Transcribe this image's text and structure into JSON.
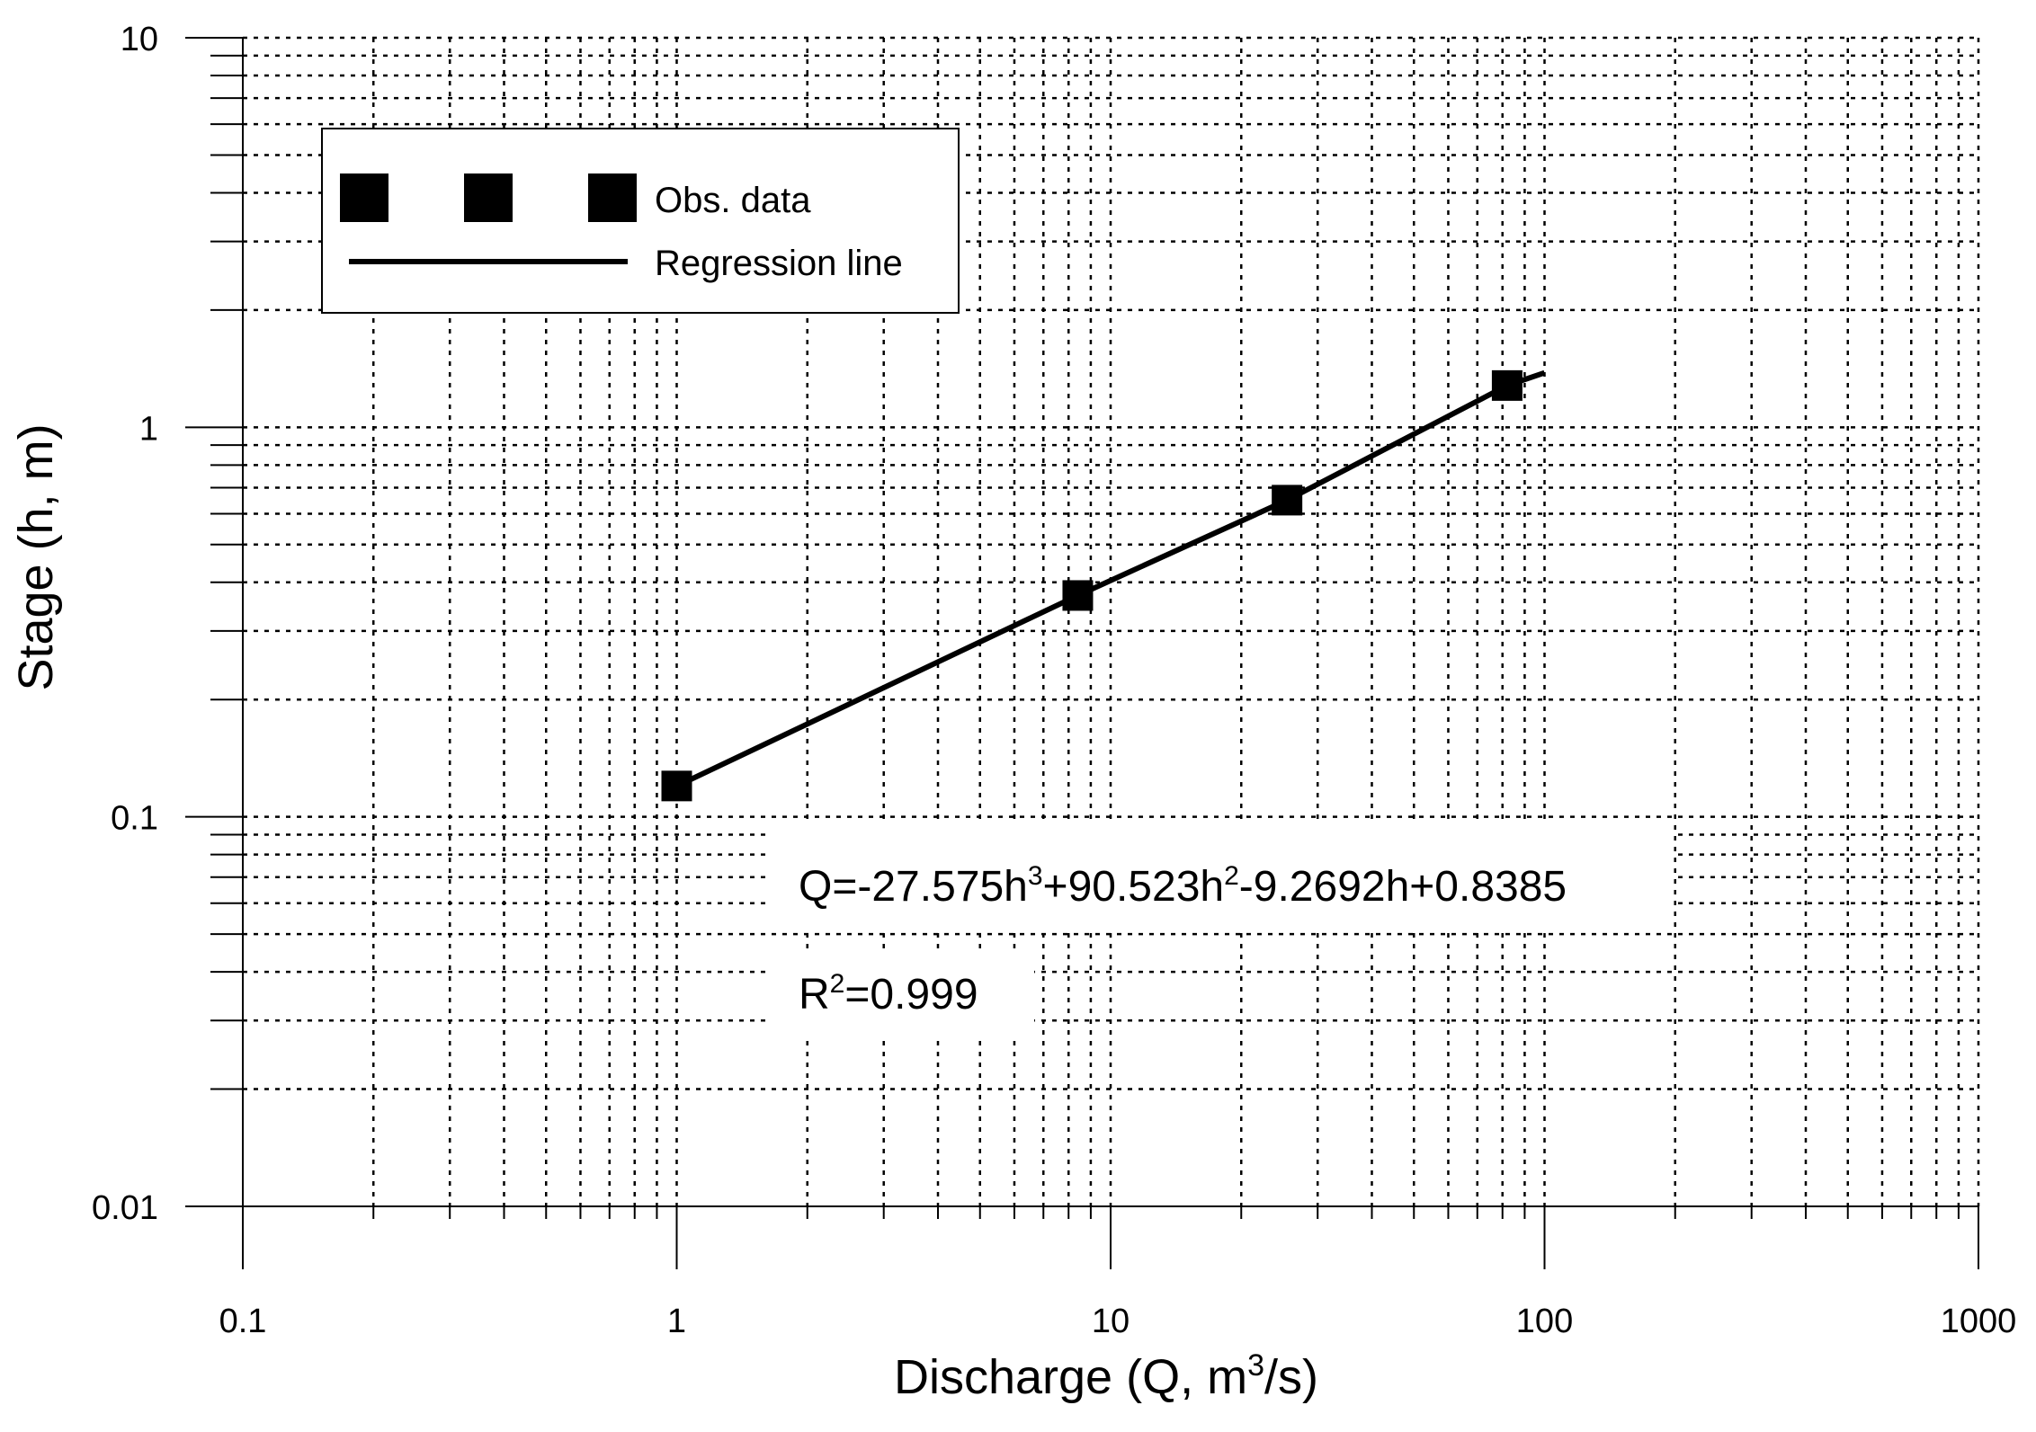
{
  "chart_data": {
    "type": "scatter",
    "xlabel": "Discharge (Q, m3/s)",
    "ylabel": "Stage (h, m)",
    "xscale": "log",
    "yscale": "log",
    "xlim": [
      0.1,
      1000
    ],
    "ylim": [
      0.01,
      10
    ],
    "x_ticks": [
      "0.1",
      "1",
      "10",
      "100",
      "1000"
    ],
    "y_ticks": [
      "0.01",
      "0.1",
      "1",
      "10"
    ],
    "grid": "dotted major and minor",
    "legend_position": "top-left",
    "series": [
      {
        "name": "Obs. data",
        "kind": "markers",
        "marker": "square",
        "points": [
          [
            1.0,
            0.12
          ],
          [
            8.4,
            0.37
          ],
          [
            25.5,
            0.65
          ],
          [
            82.0,
            1.28
          ]
        ]
      },
      {
        "name": "Regression line",
        "kind": "line",
        "points": [
          [
            1.0,
            0.12
          ],
          [
            8.4,
            0.37
          ],
          [
            25.5,
            0.65
          ],
          [
            82.0,
            1.28
          ],
          [
            100.0,
            1.38
          ]
        ]
      }
    ],
    "annotations": {
      "equation_lead": "Q=-27.575h",
      "equation_sup1": "3",
      "equation_mid": "+90.523h",
      "equation_sup2": "2",
      "equation_tail": "-9.2692h+0.8385",
      "r2_lead": "R",
      "r2_sup": "2",
      "r2_tail": "=0.999"
    },
    "xlabel_lead": "Discharge (Q, m",
    "xlabel_sup": "3",
    "xlabel_tail": "/s)"
  },
  "colors": {
    "line": "#000000",
    "marker": "#000000",
    "grid": "#000000",
    "background": "#ffffff"
  }
}
